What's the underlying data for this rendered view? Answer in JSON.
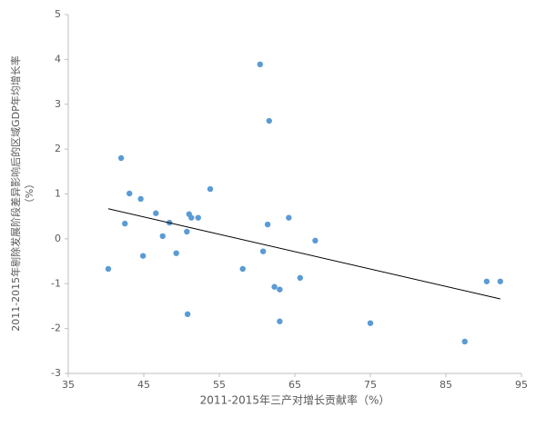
{
  "chart_data": {
    "type": "scatter",
    "x_label": "2011-2015年三产对增长贡献率（%）",
    "y_label": [
      "2011-2015年剔除发展阶段差异影响后的区域GDP年均增长率",
      "（%）"
    ],
    "x": [
      40.3,
      42.0,
      42.5,
      43.1,
      44.6,
      44.9,
      46.6,
      47.5,
      48.4,
      49.3,
      50.7,
      50.8,
      51.0,
      51.3,
      52.2,
      53.8,
      58.1,
      60.4,
      60.8,
      61.4,
      61.6,
      62.3,
      63.0,
      63.0,
      64.2,
      65.7,
      67.7,
      75.0,
      87.5,
      90.4,
      92.2
    ],
    "values": [
      -0.67,
      1.8,
      0.34,
      1.01,
      0.89,
      -0.38,
      0.57,
      0.06,
      0.36,
      -0.32,
      0.16,
      -1.68,
      0.55,
      0.47,
      0.47,
      1.11,
      -0.67,
      3.89,
      -0.28,
      0.32,
      2.63,
      -1.07,
      -1.13,
      -1.84,
      0.47,
      -0.87,
      -0.04,
      -1.88,
      -2.29,
      -0.95,
      -0.95
    ],
    "color": "#5b9bd5",
    "trendline": {
      "x": [
        40.3,
        92.2
      ],
      "y": [
        0.67,
        -1.34
      ],
      "color": "#000000"
    },
    "xlim": [
      35,
      95
    ],
    "xticks": [
      35,
      45,
      55,
      65,
      75,
      85,
      95
    ],
    "ylim": [
      -3,
      5
    ],
    "yticks": [
      -3,
      -2,
      -1,
      0,
      1,
      2,
      3,
      4,
      5
    ],
    "grid": false
  }
}
